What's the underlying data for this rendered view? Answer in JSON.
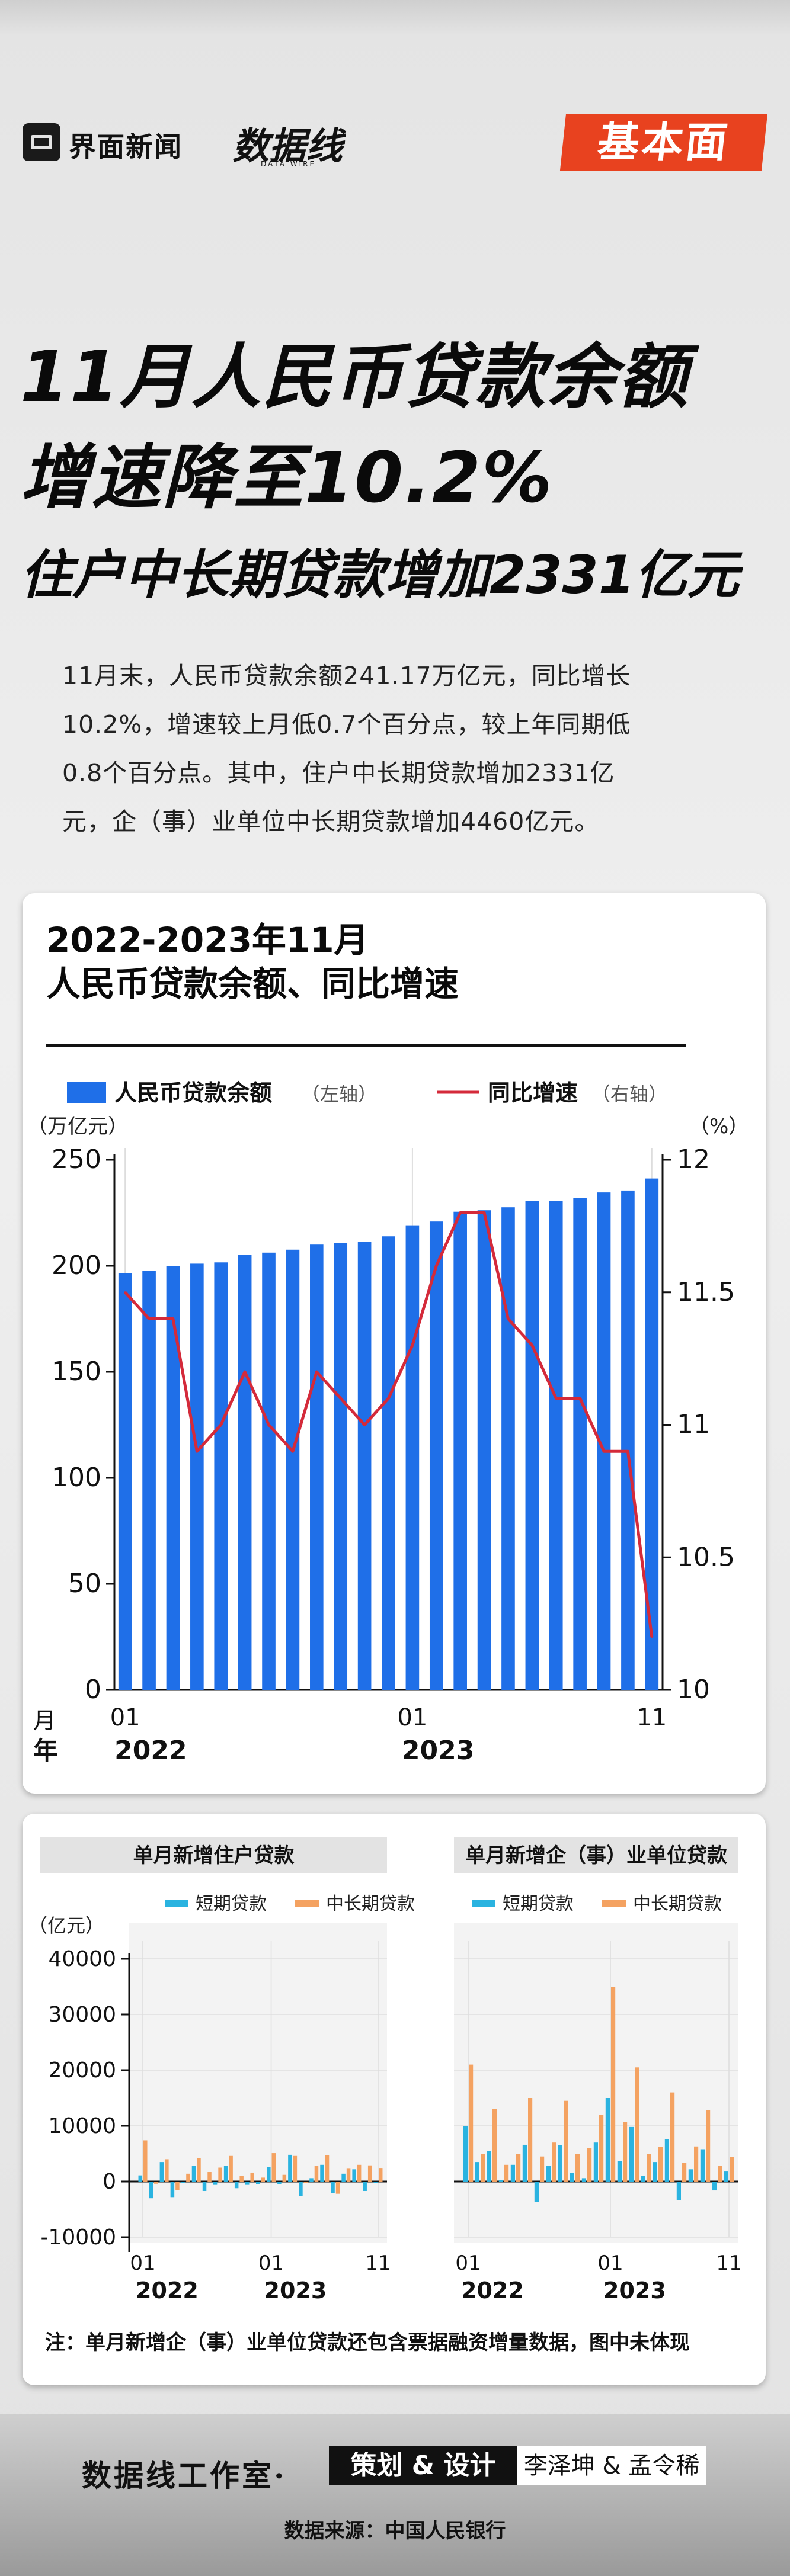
{
  "header": {
    "brand": "界面新闻",
    "sub_brand": "数据线",
    "sub_brand_en": "DATA WIRE",
    "tag": "基本面"
  },
  "headline": {
    "line1": "11月人民币贷款余额",
    "line2": "增速降至10.2%",
    "line3": "住户中长期贷款增加2331亿元"
  },
  "intro": {
    "line1": "11月末，人民币贷款余额241.17万亿元，同比增长",
    "line2": "10.2%，增速较上月低0.7个百分点，较上年同期低",
    "line3": "0.8个百分点。其中，住户中长期贷款增加2331亿",
    "line4": "元，企（事）业单位中长期贷款增加4460亿元。"
  },
  "colors": {
    "bar": "#1f6fe8",
    "line": "#d42a3a",
    "short": "#2ab3e0",
    "long": "#f4a261"
  },
  "chart_data": [
    {
      "type": "bar",
      "title": "2022-2023年11月",
      "subtitle": "人民币贷款余额、同比增速",
      "legend": [
        {
          "name": "人民币贷款余额",
          "note": "（左轴）"
        },
        {
          "name": "同比增速",
          "note": "（右轴）"
        }
      ],
      "left_unit": "（万亿元）",
      "right_unit": "（%）",
      "xlabel_month": "月",
      "xlabel_year": "年",
      "x_ticks": [
        {
          "index": 0,
          "label": "01"
        },
        {
          "index": 12,
          "label": "01"
        },
        {
          "index": 22,
          "label": "11"
        }
      ],
      "year_labels": [
        {
          "index": 0,
          "label": "2022"
        },
        {
          "index": 12,
          "label": "2023"
        }
      ],
      "ylim_left": [
        0,
        250
      ],
      "ylim_right": [
        10,
        12
      ],
      "yticks_left": [
        0,
        50,
        100,
        150,
        200,
        250
      ],
      "yticks_right": [
        10,
        10.5,
        11,
        11.5,
        12
      ],
      "series": [
        {
          "name": "人民币贷款余额",
          "type": "bar",
          "values": [
            196.6,
            197.5,
            199.9,
            201.0,
            201.6,
            205.1,
            206.2,
            207.6,
            210.0,
            210.7,
            211.3,
            213.9,
            219.1,
            220.9,
            225.5,
            226.2,
            227.6,
            230.6,
            230.6,
            231.9,
            234.6,
            235.5,
            241.17
          ]
        },
        {
          "name": "同比增速",
          "type": "line",
          "values": [
            11.5,
            11.4,
            11.4,
            10.9,
            11.0,
            11.2,
            11.0,
            10.9,
            11.2,
            11.1,
            11.0,
            11.1,
            11.3,
            11.6,
            11.8,
            11.8,
            11.4,
            11.3,
            11.1,
            11.1,
            10.9,
            10.9,
            10.2
          ]
        }
      ]
    },
    {
      "type": "bar",
      "title": "单月新增住户贷款",
      "unit": "（亿元）",
      "legend": [
        "短期贷款",
        "中长期贷款"
      ],
      "ylim": [
        -10000,
        40000
      ],
      "yticks": [
        -10000,
        0,
        10000,
        20000,
        30000,
        40000
      ],
      "x_ticks": [
        {
          "index": 0,
          "label": "01"
        },
        {
          "index": 12,
          "label": "01"
        },
        {
          "index": 22,
          "label": "11"
        }
      ],
      "year_labels": [
        {
          "index": 0,
          "label": "2022"
        },
        {
          "index": 12,
          "label": "2023"
        }
      ],
      "series": [
        {
          "name": "短期贷款",
          "values": [
            1100,
            -3000,
            3500,
            -2800,
            -300,
            2800,
            -1700,
            -600,
            2800,
            -1200,
            -600,
            -500,
            2600,
            -500,
            4800,
            -2600,
            600,
            3000,
            -2100,
            1400,
            2200,
            -1700,
            -300
          ]
        },
        {
          "name": "中长期贷款",
          "values": [
            7400,
            -400,
            4000,
            -1500,
            1400,
            4200,
            1700,
            2500,
            4600,
            1000,
            1600,
            700,
            5100,
            1200,
            4600,
            -300,
            2800,
            4700,
            -2200,
            2300,
            3000,
            2900,
            2331
          ]
        }
      ]
    },
    {
      "type": "bar",
      "title": "单月新增企（事）业单位贷款",
      "legend": [
        "短期贷款",
        "中长期贷款"
      ],
      "ylim": [
        -10000,
        40000
      ],
      "yticks": [
        -10000,
        0,
        10000,
        20000,
        30000,
        40000
      ],
      "x_ticks": [
        {
          "index": 0,
          "label": "01"
        },
        {
          "index": 12,
          "label": "01"
        },
        {
          "index": 22,
          "label": "11"
        }
      ],
      "year_labels": [
        {
          "index": 0,
          "label": "2022"
        },
        {
          "index": 12,
          "label": "2023"
        }
      ],
      "series": [
        {
          "name": "短期贷款",
          "values": [
            10000,
            3500,
            5500,
            300,
            3000,
            6600,
            -3700,
            2800,
            6500,
            1500,
            600,
            7000,
            15000,
            3700,
            9800,
            1000,
            3500,
            7600,
            -3300,
            2200,
            5800,
            -1600,
            1800
          ]
        },
        {
          "name": "中长期贷款",
          "values": [
            21000,
            5000,
            13000,
            3000,
            5000,
            15000,
            4500,
            7000,
            14500,
            5000,
            6000,
            12000,
            35000,
            10700,
            20500,
            5000,
            6200,
            16000,
            3300,
            6300,
            12800,
            2800,
            4460
          ]
        }
      ]
    }
  ],
  "note": "注：单月新增企（事）业单位贷款还包含票据融资增量数据，图中未体现",
  "footer": {
    "studio": "数据线工作室·",
    "credit_label": "策划 & 设计",
    "credit_names": "李泽坤 & 孟令稀",
    "source": "数据来源：中国人民银行"
  }
}
